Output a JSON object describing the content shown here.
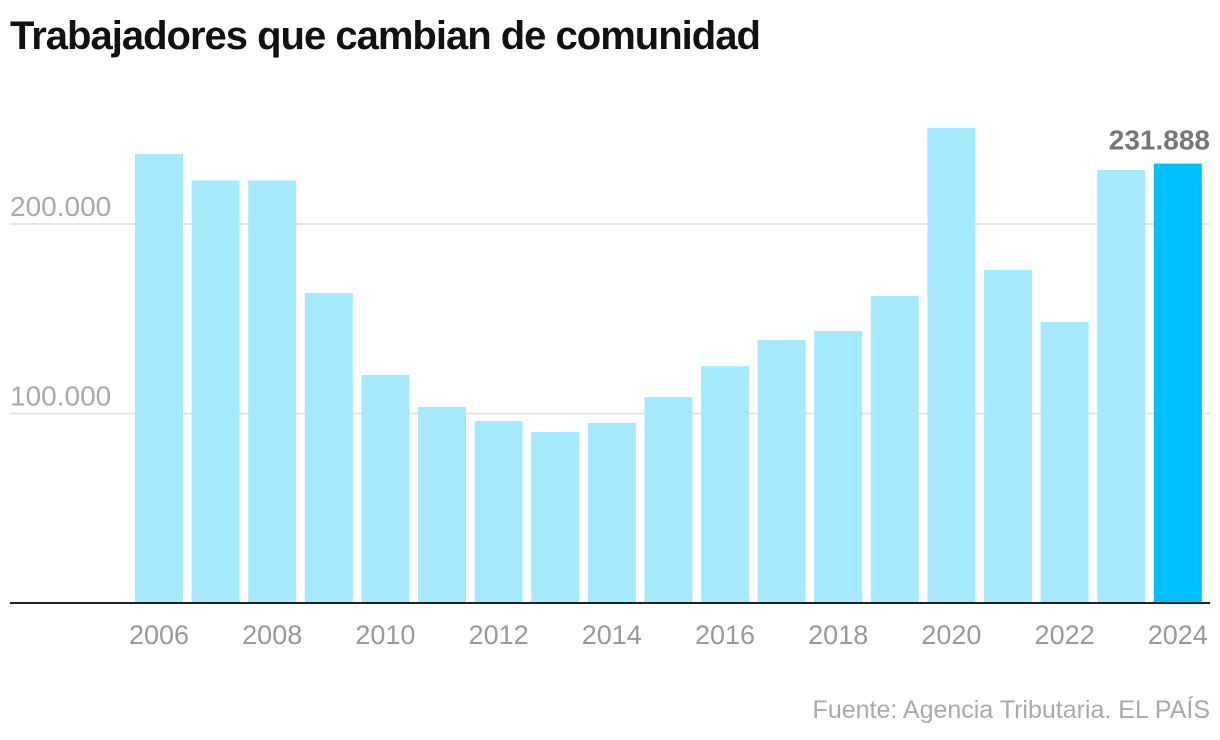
{
  "chart_data": {
    "type": "bar",
    "title": "Trabajadores que cambian de comunidad",
    "categories": [
      "2006",
      "2007",
      "2008",
      "2009",
      "2010",
      "2011",
      "2012",
      "2013",
      "2014",
      "2015",
      "2016",
      "2017",
      "2018",
      "2019",
      "2020",
      "2021",
      "2022",
      "2023",
      "2024"
    ],
    "values": [
      237000,
      223000,
      223000,
      163600,
      120300,
      103400,
      96000,
      90200,
      95000,
      108700,
      125000,
      138800,
      143500,
      162000,
      250700,
      175700,
      148300,
      228500,
      231888
    ],
    "x_tick_labels": [
      "2006",
      "2008",
      "2010",
      "2012",
      "2014",
      "2016",
      "2018",
      "2020",
      "2022",
      "2024"
    ],
    "y_ticks": [
      100000,
      200000
    ],
    "y_tick_labels": [
      "100.000",
      "200.000"
    ],
    "ylim": [
      0,
      260000
    ],
    "grid": true,
    "highlight": {
      "category": "2024",
      "label": "231.888"
    },
    "colors": {
      "bar": "#a6e8fd",
      "highlight": "#00bfff",
      "grid": "#dddddd",
      "axis": "#222222",
      "label": "#777777"
    },
    "xlabel": "",
    "ylabel": ""
  },
  "source": "Fuente: Agencia Tributaria. EL PAÍS"
}
